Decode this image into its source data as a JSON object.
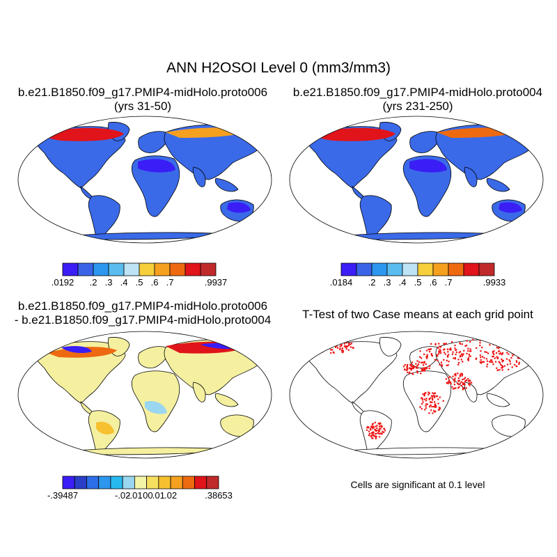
{
  "title": "ANN H2OSOI Level 0 (mm3/mm3)",
  "panels": [
    {
      "title_line1": "b.e21.B1850.f09_g17.PMIP4-midHolo.proto006",
      "title_line2": "(yrs 31-50)",
      "colorbar": {
        "colors": [
          "#3a1ef5",
          "#3a64e8",
          "#2d96ef",
          "#5bbcef",
          "#bde3f5",
          "#f6d03c",
          "#f6a020",
          "#ee6a10",
          "#e0141a",
          "#c02a2a"
        ],
        "tick_labels": [
          ".0192",
          ".2",
          ".3",
          ".4",
          ".5",
          ".6",
          ".7",
          ".9937"
        ]
      }
    },
    {
      "title_line1": "b.e21.B1850.f09_g17.PMIP4-midHolo.proto004",
      "title_line2": "(yrs 231-250)",
      "colorbar": {
        "colors": [
          "#3a1ef5",
          "#3a64e8",
          "#2d96ef",
          "#5bbcef",
          "#bde3f5",
          "#f6d03c",
          "#f6a020",
          "#ee6a10",
          "#e0141a",
          "#c02a2a"
        ],
        "tick_labels": [
          ".0184",
          ".2",
          ".3",
          ".4",
          ".5",
          ".6",
          ".7",
          ".9933"
        ]
      }
    },
    {
      "title_line1": "b.e21.B1850.f09_g17.PMIP4-midHolo.proto006",
      "title_line2": "- b.e21.B1850.f09_g17.PMIP4-midHolo.proto004",
      "colorbar": {
        "colors": [
          "#3a1ef5",
          "#2a3ec8",
          "#2d6ee8",
          "#2d96ef",
          "#28b8f0",
          "#9ad6f0",
          "#f5f5a8",
          "#f6e060",
          "#f6c030",
          "#f6a020",
          "#ee6a10",
          "#e0141a",
          "#c02a2a"
        ],
        "tick_labels": [
          "-.39487",
          "-.02",
          "-.01",
          ".00",
          ".01",
          ".02",
          ".38653"
        ]
      }
    },
    {
      "title_line1": "T-Test of two Case means at each grid point"
    }
  ],
  "significance_note": "Cells are significant at 0.1 level",
  "significance_color": "#ee1111"
}
